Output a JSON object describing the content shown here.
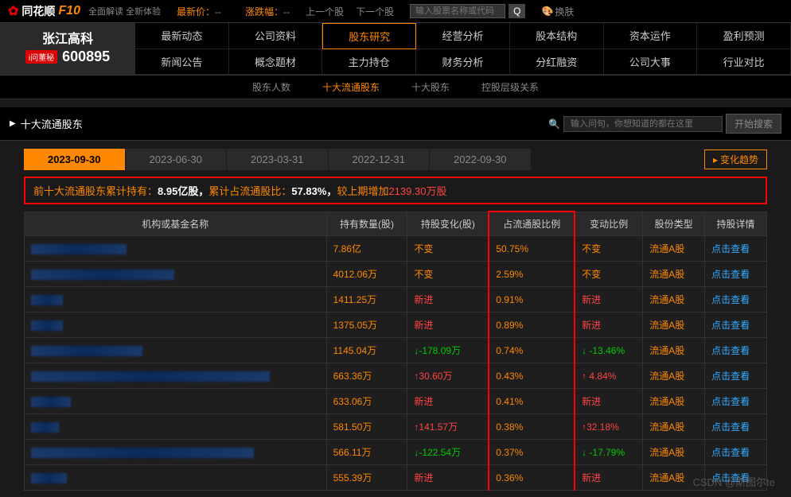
{
  "header": {
    "logo_text": "同花顺",
    "logo_suffix": "F10",
    "logo_sub": "全面解读 全新体验",
    "latest_price_label": "最新价：",
    "latest_price": "--",
    "change_label": "涨跌幅：",
    "change": "--",
    "prev_stock": "上一个股",
    "next_stock": "下一个股",
    "search_placeholder": "输入股票名称或代码",
    "skin_label": "换肤"
  },
  "stock": {
    "name": "张江高科",
    "ask_label": "i问董秘",
    "code": "600895"
  },
  "tabs": {
    "grid": [
      [
        "最新动态",
        "公司资料",
        "股东研究",
        "经营分析",
        "股本结构",
        "资本运作",
        "盈利预测"
      ],
      [
        "新闻公告",
        "概念题材",
        "主力持仓",
        "财务分析",
        "分红融资",
        "公司大事",
        "行业对比"
      ]
    ],
    "active": "股东研究"
  },
  "sub_tabs": {
    "items": [
      "股东人数",
      "十大流通股东",
      "十大股东",
      "控股层级关系"
    ],
    "active": "十大流通股东"
  },
  "section": {
    "title": "十大流通股东",
    "search_placeholder": "输入问句，你想知道的都在这里",
    "search_btn": "开始搜索"
  },
  "date_tabs": {
    "items": [
      "2023-09-30",
      "2023-06-30",
      "2023-03-31",
      "2022-12-31",
      "2022-09-30"
    ],
    "active": "2023-09-30",
    "trend_btn": "变化趋势"
  },
  "summary": {
    "prefix": "前十大流通股东累计持有：",
    "shares": "8.95亿股，",
    "mid": "累计占流通股比：",
    "ratio": "57.83%，",
    "suffix": "较上期增加",
    "delta": "2139.30万股"
  },
  "table": {
    "columns": [
      "机构或基金名称",
      "持有数量(股)",
      "持股变化(股)",
      "占流通股比例",
      "变动比例",
      "股份类型",
      "持股详情"
    ],
    "highlight_col": 3,
    "rows": [
      {
        "name_w": 120,
        "qty": "7.86亿",
        "chg": "不变",
        "chg_cls": "",
        "ratio": "50.75%",
        "vr": "不变",
        "vr_cls": "",
        "type": "流通A股",
        "detail": "点击查看"
      },
      {
        "name_w": 180,
        "qty": "4012.06万",
        "chg": "不变",
        "chg_cls": "",
        "ratio": "2.59%",
        "vr": "不变",
        "vr_cls": "",
        "type": "流通A股",
        "detail": "点击查看"
      },
      {
        "name_w": 40,
        "qty": "1411.25万",
        "chg": "新进",
        "chg_cls": "red-text",
        "ratio": "0.91%",
        "vr": "新进",
        "vr_cls": "red-text",
        "type": "流通A股",
        "detail": "点击查看"
      },
      {
        "name_w": 40,
        "qty": "1375.05万",
        "chg": "新进",
        "chg_cls": "red-text",
        "ratio": "0.89%",
        "vr": "新进",
        "vr_cls": "red-text",
        "type": "流通A股",
        "detail": "点击查看"
      },
      {
        "name_w": 140,
        "qty": "1145.04万",
        "chg": "↓-178.09万",
        "chg_cls": "green-text",
        "ratio": "0.74%",
        "vr": "↓ -13.46%",
        "vr_cls": "green-text",
        "type": "流通A股",
        "detail": "点击查看"
      },
      {
        "name_w": 300,
        "qty": "663.36万",
        "chg": "↑30.60万",
        "chg_cls": "red-text",
        "ratio": "0.43%",
        "vr": "↑ 4.84%",
        "vr_cls": "red-text",
        "type": "流通A股",
        "detail": "点击查看"
      },
      {
        "name_w": 50,
        "qty": "633.06万",
        "chg": "新进",
        "chg_cls": "red-text",
        "ratio": "0.41%",
        "vr": "新进",
        "vr_cls": "red-text",
        "type": "流通A股",
        "detail": "点击查看"
      },
      {
        "name_w": 35,
        "qty": "581.50万",
        "chg": "↑141.57万",
        "chg_cls": "red-text",
        "ratio": "0.38%",
        "vr": "↑32.18%",
        "vr_cls": "red-text",
        "type": "流通A股",
        "detail": "点击查看"
      },
      {
        "name_w": 280,
        "qty": "566.11万",
        "chg": "↓-122.54万",
        "chg_cls": "green-text",
        "ratio": "0.37%",
        "vr": "↓ -17.79%",
        "vr_cls": "green-text",
        "type": "流通A股",
        "detail": "点击查看"
      },
      {
        "name_w": 45,
        "qty": "555.39万",
        "chg": "新进",
        "chg_cls": "red-text",
        "ratio": "0.36%",
        "vr": "新进",
        "vr_cls": "red-text",
        "type": "流通A股",
        "detail": "点击查看"
      }
    ]
  },
  "watermark": "CSDN @斯图尔te"
}
